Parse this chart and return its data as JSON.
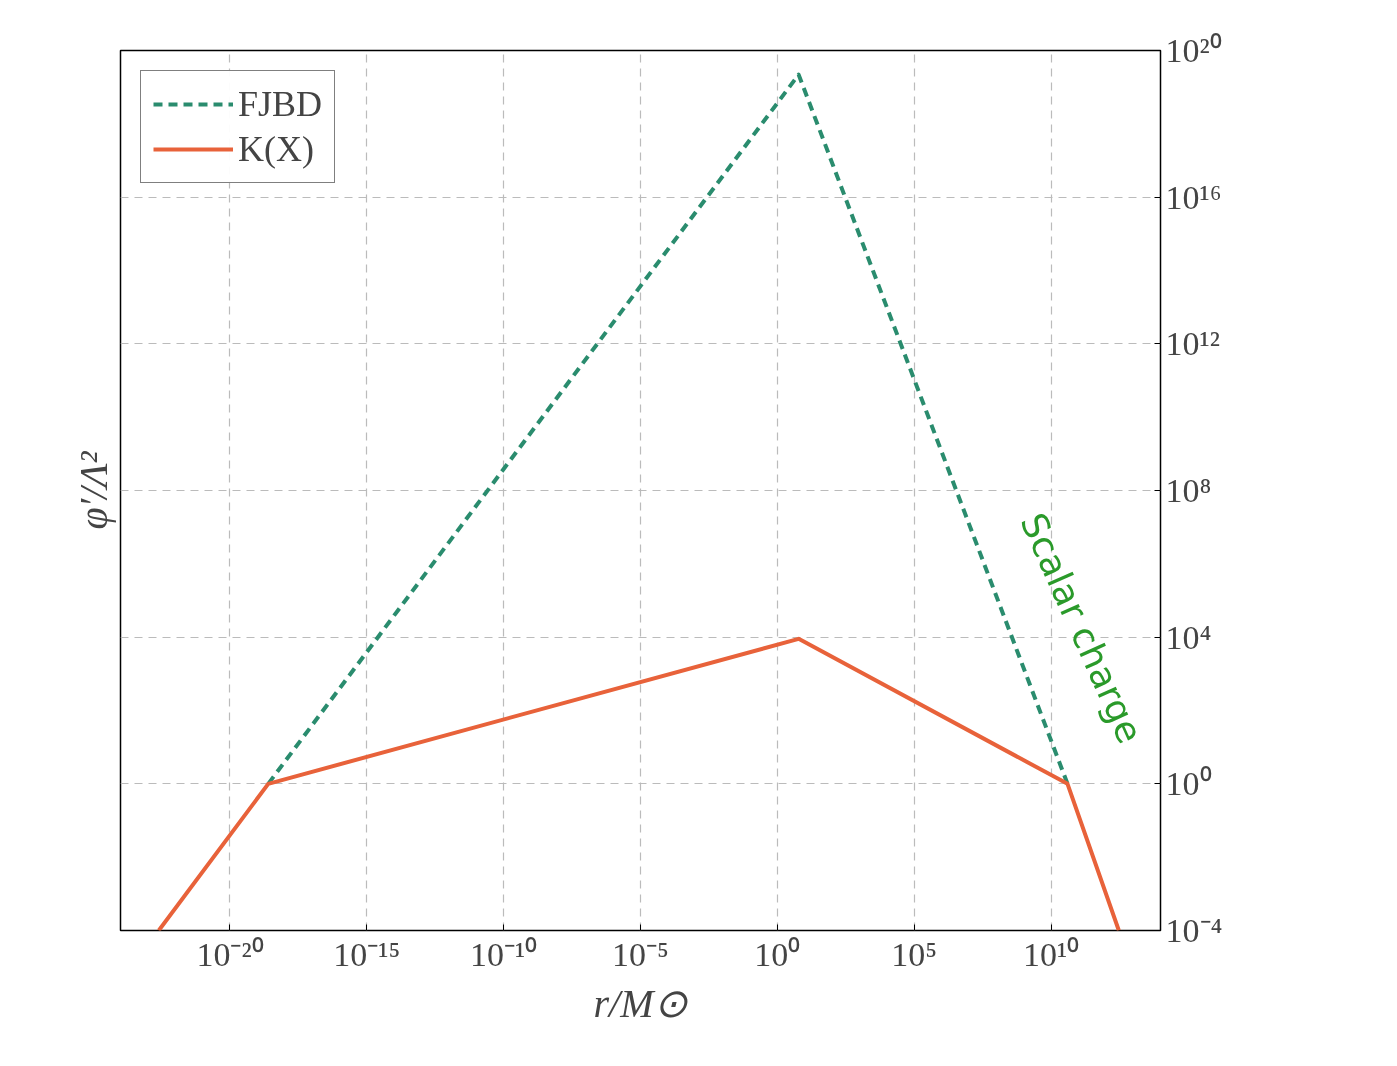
{
  "chart_data": {
    "type": "line",
    "xlabel": "r/M⊙",
    "ylabel": "φ′/Λ²",
    "log": "xy",
    "grid": true,
    "legend": "top left",
    "xlim": [
      1e-24,
      100000000000000.0
    ],
    "ylim": [
      0.0001,
      1e+20
    ],
    "xticks": [
      {
        "value": 1e-20,
        "label": "10⁻²⁰"
      },
      {
        "value": 1e-15,
        "label": "10⁻¹⁵"
      },
      {
        "value": 1e-10,
        "label": "10⁻¹⁰"
      },
      {
        "value": 1e-05,
        "label": "10⁻⁵"
      },
      {
        "value": 1,
        "label": "10⁰"
      },
      {
        "value": 100000.0,
        "label": "10⁵"
      },
      {
        "value": 10000000000.0,
        "label": "10¹⁰"
      }
    ],
    "yticks": [
      {
        "value": 0.0001,
        "label": "10⁻⁴"
      },
      {
        "value": 1,
        "label": "10⁰"
      },
      {
        "value": 10000.0,
        "label": "10⁴"
      },
      {
        "value": 100000000.0,
        "label": "10⁸"
      },
      {
        "value": 1000000000000.0,
        "label": "10¹²"
      },
      {
        "value": 1e+16,
        "label": "10¹⁶"
      },
      {
        "value": 1e+20,
        "label": "10²⁰"
      }
    ],
    "series": [
      {
        "name": "FJBD",
        "color": "#2a8c6e",
        "line_style": "dashed",
        "x": [
          2.5e-19,
          6.0,
          40000000000.0
        ],
        "values": [
          1,
          2.2e+19,
          1
        ]
      },
      {
        "name": "K(X)",
        "color": "#e8623a",
        "line_style": "solid",
        "x": [
          2.5e-23,
          2.5e-19,
          6.0,
          40000000000.0,
          3000000000000.0
        ],
        "values": [
          0.0001,
          1,
          9000.0,
          1,
          0.0001
        ]
      }
    ],
    "annotations": [
      {
        "text": "Scalar charge",
        "x": 40000000000.0,
        "y": 1
      }
    ]
  }
}
